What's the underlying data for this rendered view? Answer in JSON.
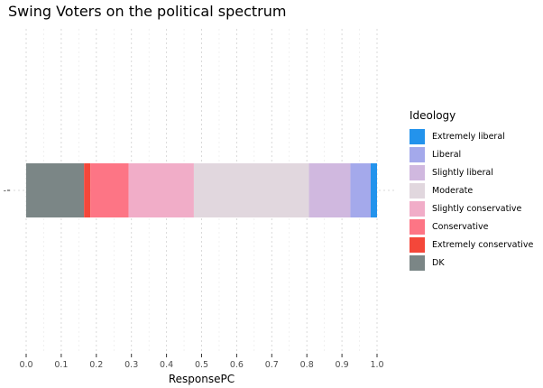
{
  "chart_data": {
    "type": "bar",
    "orientation": "horizontal",
    "stacked": true,
    "title": "Swing Voters on the political spectrum",
    "xlabel": "ResponsePC",
    "ylabel": "",
    "category_labels": [
      "-"
    ],
    "xlim": [
      0,
      1
    ],
    "x_ticks": [
      "0.0",
      "0.1",
      "0.2",
      "0.3",
      "0.4",
      "0.5",
      "0.6",
      "0.7",
      "0.8",
      "0.9",
      "1.0"
    ],
    "grid": true,
    "legend_position": "right",
    "legend_title": "Ideology",
    "legend_order": [
      "Extremely liberal",
      "Liberal",
      "Slightly liberal",
      "Moderate",
      "Slightly conservative",
      "Conservative",
      "Extremely conservative",
      "DK"
    ],
    "series": [
      {
        "name": "DK",
        "value": 0.165,
        "color": "#7b8686"
      },
      {
        "name": "Extremely conservative",
        "value": 0.018,
        "color": "#f4473a"
      },
      {
        "name": "Conservative",
        "value": 0.109,
        "color": "#fd7585"
      },
      {
        "name": "Slightly conservative",
        "value": 0.186,
        "color": "#f1adc8"
      },
      {
        "name": "Moderate",
        "value": 0.328,
        "color": "#e1d7de"
      },
      {
        "name": "Slightly liberal",
        "value": 0.118,
        "color": "#d0b8df"
      },
      {
        "name": "Liberal",
        "value": 0.058,
        "color": "#a4a9eb"
      },
      {
        "name": "Extremely liberal",
        "value": 0.018,
        "color": "#2393ec"
      }
    ]
  }
}
